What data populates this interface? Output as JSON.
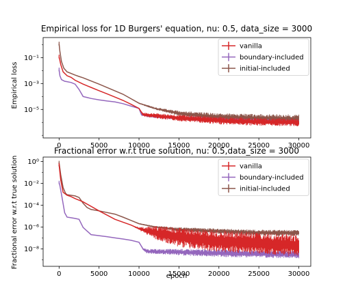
{
  "chart_data": [
    {
      "type": "line",
      "title": "Empirical loss for 1D Burgers' equation, nu: 0.5, data_size = 3000",
      "xlabel": "",
      "ylabel": "Empirical loss",
      "xlim": [
        -2000,
        31500
      ],
      "ylim_log10": [
        -7.2,
        0.55
      ],
      "yscale": "log",
      "x_ticks": [
        0,
        5000,
        10000,
        15000,
        20000,
        25000,
        30000
      ],
      "x_tick_labels": [
        "0",
        "5000",
        "10000",
        "15000",
        "20000",
        "25000",
        "30000"
      ],
      "y_ticks_log10": [
        -1,
        -3,
        -5
      ],
      "y_tick_labels": [
        "10⁻¹",
        "10⁻³",
        "10⁻⁵"
      ],
      "legend": "top-right",
      "series": [
        {
          "name": "vanilla",
          "color": "#d62728",
          "x": [
            0,
            200,
            500,
            1000,
            1500,
            2000,
            3000,
            4000,
            5000,
            6000,
            7000,
            8000,
            9000,
            10000,
            10500,
            12000,
            15000,
            20000,
            25000,
            30000
          ],
          "y": [
            0.12,
            0.03,
            0.008,
            0.004,
            0.003,
            0.0018,
            0.0009,
            0.0005,
            0.00028,
            0.00016,
            9e-05,
            5e-05,
            2.5e-05,
            1.2e-05,
            4e-06,
            3.3e-06,
            2.2e-06,
            1.4e-06,
            1.1e-06,
            1e-06
          ],
          "spread_log10": [
            0,
            0,
            0,
            0,
            0,
            0,
            0,
            0,
            0,
            0,
            0,
            0,
            0,
            0,
            0.15,
            0.2,
            0.25,
            0.3,
            0.3,
            0.3
          ]
        },
        {
          "name": "boundary-included",
          "color": "#9467bd",
          "x": [
            0,
            100,
            300,
            700,
            1000,
            1500,
            2000,
            2500,
            3000,
            4000,
            5000,
            6000,
            7000,
            8000,
            9000,
            10000,
            10300,
            11000,
            15000,
            20000,
            25000,
            30000
          ],
          "y": [
            0.012,
            0.004,
            0.002,
            0.0015,
            0.0014,
            0.0012,
            0.0009,
            0.00035,
            0.0001,
            7e-05,
            5.5e-05,
            4.5e-05,
            3.8e-05,
            2.8e-05,
            1.8e-05,
            1.2e-05,
            4e-06,
            3.3e-06,
            2.2e-06,
            1.5e-06,
            1.2e-06,
            1e-06
          ],
          "spread_log10": [
            0,
            0,
            0,
            0,
            0,
            0,
            0,
            0,
            0,
            0,
            0,
            0,
            0,
            0,
            0,
            0,
            0.1,
            0.12,
            0.15,
            0.18,
            0.18,
            0.18
          ]
        },
        {
          "name": "initial-included",
          "color": "#8c564b",
          "x": [
            0,
            100,
            300,
            600,
            1000,
            1500,
            2000,
            2500,
            3000,
            5000,
            8000,
            10000,
            12000,
            15000,
            20000,
            25000,
            30000
          ],
          "y": [
            1.2,
            0.3,
            0.05,
            0.015,
            0.008,
            0.006,
            0.0045,
            0.0035,
            0.0028,
            0.0009,
            0.00015,
            3e-05,
            1.2e-05,
            5e-06,
            2.5e-06,
            2e-06,
            1.8e-06
          ],
          "spread_log10": [
            0,
            0,
            0,
            0,
            0,
            0,
            0,
            0,
            0,
            0,
            0,
            0.05,
            0.1,
            0.2,
            0.3,
            0.35,
            0.35
          ]
        }
      ]
    },
    {
      "type": "line",
      "title": "Fractional error w.r.t true solution, nu: 0.5,data_size = 3000",
      "xlabel": "epoch",
      "ylabel": "Fractional error w.r.t true solution",
      "xlim": [
        -2000,
        31500
      ],
      "ylim_log10": [
        -9.6,
        0.4
      ],
      "yscale": "log",
      "x_ticks": [
        0,
        5000,
        10000,
        15000,
        20000,
        25000,
        30000
      ],
      "x_tick_labels": [
        "0",
        "5000",
        "10000",
        "15000",
        "20000",
        "25000",
        "30000"
      ],
      "y_ticks_log10": [
        0,
        -2,
        -4,
        -6,
        -8
      ],
      "y_tick_labels": [
        "10⁰",
        "10⁻²",
        "10⁻⁴",
        "10⁻⁶",
        "10⁻⁸"
      ],
      "legend": "top-right",
      "series": [
        {
          "name": "vanilla",
          "color": "#d62728",
          "x": [
            0,
            200,
            500,
            1000,
            1500,
            2000,
            3000,
            5000,
            7000,
            9000,
            10000,
            12000,
            15000,
            20000,
            25000,
            30000
          ],
          "y": [
            0.5,
            0.02,
            0.0015,
            0.0008,
            0.0006,
            0.0004,
            0.0002,
            3e-05,
            5e-06,
            1.5e-06,
            7e-07,
            3e-07,
            1.2e-07,
            5e-08,
            3e-08,
            2e-08
          ],
          "spread_log10": [
            0,
            0,
            0,
            0,
            0,
            0,
            0,
            0,
            0,
            0,
            0.15,
            0.6,
            0.9,
            1.0,
            1.0,
            1.0
          ]
        },
        {
          "name": "boundary-included",
          "color": "#9467bd",
          "x": [
            0,
            100,
            300,
            700,
            1000,
            1500,
            2000,
            2500,
            3000,
            4000,
            5000,
            6000,
            7000,
            8000,
            9000,
            10000,
            10500,
            11000,
            15000,
            20000,
            25000,
            30000
          ],
          "y": [
            0.012,
            0.006,
            0.001,
            2e-05,
            8e-06,
            7e-06,
            6e-06,
            5e-06,
            9e-07,
            2e-07,
            1.6e-07,
            1.3e-07,
            1e-07,
            8e-08,
            6e-08,
            4e-08,
            1e-08,
            6e-09,
            5e-09,
            4e-09,
            3.5e-09,
            3e-09
          ],
          "spread_log10": [
            0,
            0,
            0,
            0,
            0,
            0,
            0,
            0,
            0,
            0,
            0,
            0,
            0,
            0,
            0,
            0,
            0.1,
            0.2,
            0.3,
            0.35,
            0.35,
            0.35
          ]
        },
        {
          "name": "initial-included",
          "color": "#8c564b",
          "x": [
            0,
            200,
            500,
            800,
            1000,
            1500,
            2000,
            2500,
            3000,
            3500,
            4000,
            5000,
            7000,
            8000,
            9000,
            10000,
            12000,
            15000,
            20000,
            25000,
            30000
          ],
          "y": [
            0.8,
            0.06,
            0.004,
            0.0012,
            0.0009,
            0.0008,
            0.0007,
            0.0005,
            0.00015,
            6e-05,
            4e-05,
            3e-05,
            1.5e-05,
            8e-06,
            4e-06,
            2e-06,
            1e-06,
            6e-07,
            4e-07,
            3e-07,
            2.8e-07
          ],
          "spread_log10": [
            0,
            0,
            0,
            0,
            0,
            0,
            0,
            0,
            0,
            0,
            0,
            0,
            0,
            0,
            0,
            0.05,
            0.1,
            0.2,
            0.25,
            0.28,
            0.28
          ]
        }
      ]
    }
  ]
}
